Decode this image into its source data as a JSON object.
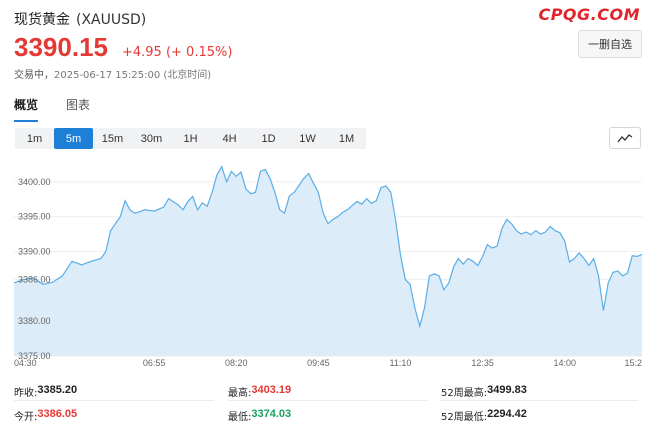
{
  "header": {
    "name": "现货黄金",
    "symbol": "(XAUUSD)",
    "brand": "CPQG.COM",
    "watch_button": "一删自选"
  },
  "quote": {
    "price": "3390.15",
    "change": "+4.95 (+ 0.15%)",
    "status": "交易中，",
    "timestamp": "2025-06-17 15:25:00 (北京时间)"
  },
  "tabs": [
    {
      "label": "概览",
      "active": true
    },
    {
      "label": "图表",
      "active": false
    }
  ],
  "timeframes": [
    {
      "label": "1m",
      "active": false
    },
    {
      "label": "5m",
      "active": true
    },
    {
      "label": "15m",
      "active": false
    },
    {
      "label": "30m",
      "active": false
    },
    {
      "label": "1H",
      "active": false
    },
    {
      "label": "4H",
      "active": false
    },
    {
      "label": "1D",
      "active": false
    },
    {
      "label": "1W",
      "active": false
    },
    {
      "label": "1M",
      "active": false
    }
  ],
  "chart_type_icon": "line-chart-icon",
  "colors": {
    "up": "#e53935",
    "down": "#1aa260",
    "accent": "#1e7fd6",
    "brand": "#e0242b",
    "line": "#5aaee6",
    "fill": "#dcecf9"
  },
  "chart_data": {
    "type": "area",
    "title": "",
    "xlabel": "",
    "ylabel": "",
    "ylim": [
      3375,
      3403
    ],
    "y_ticks": [
      "3400.00",
      "3395.00",
      "3390.00",
      "3386.00",
      "3380.00",
      "3375.00"
    ],
    "y_tick_values": [
      3400,
      3395,
      3390,
      3386,
      3380,
      3375
    ],
    "x_ticks": [
      "04:30",
      "06:55",
      "08:20",
      "09:45",
      "11:10",
      "12:35",
      "14:00",
      "15:2"
    ],
    "x_tick_positions": [
      0,
      29,
      46,
      63,
      80,
      97,
      114,
      130
    ],
    "series": [
      {
        "x": [
          0,
          2,
          4,
          6,
          8,
          10,
          12,
          14,
          16,
          18,
          19,
          20,
          22,
          23,
          24,
          25,
          26,
          27,
          29,
          31,
          32,
          34,
          35,
          36,
          37,
          38,
          39,
          40,
          41,
          42,
          43,
          44,
          45,
          46,
          47,
          48,
          49,
          50,
          51,
          52,
          53,
          54,
          55,
          56,
          57,
          58,
          59,
          60,
          61,
          62,
          63,
          64,
          65,
          66,
          67,
          68,
          69,
          70,
          71,
          72,
          73,
          74,
          75,
          76,
          77,
          78,
          79,
          80,
          81,
          82,
          83,
          84,
          85,
          86,
          87,
          88,
          89,
          90,
          91,
          92,
          93,
          94,
          95,
          96,
          97,
          98,
          99,
          100,
          101,
          102,
          103,
          104,
          105,
          106,
          107,
          108,
          109,
          110,
          111,
          112,
          113,
          114,
          115,
          116,
          117,
          118,
          119,
          120,
          121,
          122,
          123,
          124,
          125,
          126,
          127,
          128,
          129,
          130
        ],
        "values": [
          3385.5,
          3386.0,
          3386.2,
          3385.3,
          3385.6,
          3386.5,
          3388.6,
          3388.1,
          3388.6,
          3389.0,
          3390.0,
          3393.0,
          3395.0,
          3397.3,
          3396.0,
          3395.5,
          3395.7,
          3396.0,
          3395.8,
          3396.4,
          3397.6,
          3396.7,
          3396.0,
          3397.2,
          3397.9,
          3396.0,
          3397.0,
          3396.5,
          3398.5,
          3401.0,
          3402.2,
          3400.0,
          3401.5,
          3400.8,
          3401.4,
          3399.0,
          3398.3,
          3398.5,
          3401.5,
          3401.8,
          3400.5,
          3398.5,
          3396.0,
          3395.5,
          3398.0,
          3398.5,
          3399.5,
          3400.5,
          3401.2,
          3399.8,
          3398.5,
          3395.5,
          3394.0,
          3394.6,
          3395.0,
          3395.6,
          3396.0,
          3396.6,
          3397.2,
          3396.8,
          3397.6,
          3396.9,
          3397.3,
          3399.2,
          3399.4,
          3398.5,
          3394.5,
          3389.5,
          3386.0,
          3385.3,
          3381.8,
          3379.3,
          3382.0,
          3386.5,
          3386.8,
          3386.5,
          3384.5,
          3385.5,
          3387.8,
          3389.0,
          3388.2,
          3389.0,
          3388.6,
          3388.0,
          3389.3,
          3391.0,
          3390.5,
          3390.8,
          3393.3,
          3394.6,
          3394.0,
          3393.0,
          3392.5,
          3392.8,
          3392.4,
          3393.0,
          3392.5,
          3392.8,
          3393.6,
          3393.0,
          3392.7,
          3391.5,
          3388.5,
          3389.0,
          3389.8,
          3389.0,
          3388.0,
          3389.0,
          3386.5,
          3381.5,
          3385.5,
          3387.0,
          3387.2,
          3386.5,
          3386.9,
          3389.4,
          3389.3,
          3389.6
        ]
      }
    ]
  },
  "stats": {
    "prev_close_label": "昨收:",
    "prev_close": "3385.20",
    "open_label": "今开:",
    "open": "3386.05",
    "high_label": "最高:",
    "high": "3403.19",
    "low_label": "最低:",
    "low": "3374.03",
    "w52_high_label": "52周最高:",
    "w52_high": "3499.83",
    "w52_low_label": "52周最低:",
    "w52_low": "2294.42"
  }
}
